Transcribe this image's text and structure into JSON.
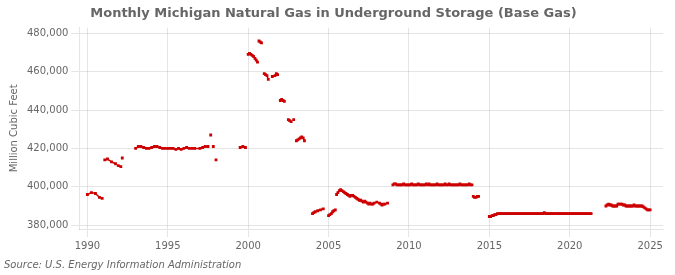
{
  "chart_data": {
    "type": "line",
    "title": "Monthly Michigan Natural Gas in Underground Storage (Base Gas)",
    "ylabel": "Million Cubic Feet",
    "source": "Source: U.S. Energy Information Administration",
    "grid": true,
    "xlim": [
      1989.5,
      2025.8
    ],
    "xticks": [
      1990,
      1995,
      2000,
      2005,
      2010,
      2015,
      2020,
      2025
    ],
    "ylim": [
      378000,
      483000
    ],
    "yticks": [
      {
        "value": 380000,
        "label": "380,000"
      },
      {
        "value": 400000,
        "label": "400,000"
      },
      {
        "value": 420000,
        "label": "420,000"
      },
      {
        "value": 440000,
        "label": "440,000"
      },
      {
        "value": 460000,
        "label": "460,000"
      },
      {
        "value": 480000,
        "label": "480,000"
      }
    ],
    "x": [
      1990.0,
      1990.25,
      1990.5,
      1990.75,
      1990.92,
      null,
      1991.08,
      1991.25,
      1991.5,
      1991.75,
      null,
      1991.92,
      1992.08,
      null,
      1992.17,
      null,
      1993.0,
      1993.17,
      1993.33,
      1993.5,
      1993.67,
      1993.83,
      1994.0,
      1994.17,
      1994.33,
      1994.5,
      1994.67,
      1994.83,
      1995.0,
      1995.17,
      1995.33,
      1995.5,
      1995.67,
      1995.83,
      1996.0,
      1996.17,
      1996.33,
      1996.5,
      1996.67,
      1997.0,
      1997.17,
      1997.33,
      1997.5,
      null,
      1997.67,
      null,
      1997.83,
      null,
      1998.0,
      null,
      1999.5,
      1999.67,
      1999.83,
      null,
      2000.0,
      2000.08,
      2000.17,
      2000.25,
      2000.33,
      2000.42,
      2000.5,
      2000.58,
      null,
      2000.67,
      2000.75,
      2000.83,
      null,
      2001.0,
      2001.08,
      2001.17,
      2001.25,
      null,
      2001.5,
      2001.67,
      2001.75,
      2001.83,
      null,
      2002.0,
      2002.08,
      2002.17,
      2002.25,
      null,
      2002.5,
      2002.58,
      2002.67,
      null,
      2002.83,
      null,
      2003.0,
      2003.08,
      2003.17,
      2003.25,
      2003.33,
      2003.42,
      2003.5,
      null,
      2004.0,
      2004.08,
      2004.17,
      2004.33,
      2004.5,
      2004.67,
      null,
      2005.0,
      2005.08,
      2005.17,
      2005.25,
      2005.33,
      2005.42,
      null,
      2005.5,
      2005.58,
      2005.67,
      2005.75,
      2005.83,
      2005.92,
      2006.0,
      2006.08,
      2006.17,
      2006.25,
      2006.33,
      2006.42,
      2006.5,
      2006.58,
      2006.67,
      2006.75,
      2006.83,
      2006.92,
      2007.0,
      2007.08,
      2007.17,
      2007.25,
      2007.33,
      2007.42,
      2007.5,
      2007.58,
      2007.67,
      2007.75,
      2007.83,
      2008.0,
      2008.17,
      2008.25,
      2008.33,
      2008.42,
      2008.5,
      2008.67,
      null,
      2009.0,
      2009.08,
      2009.17,
      2009.25,
      2009.33,
      2009.42,
      2009.5,
      2009.58,
      2009.67,
      2009.75,
      2009.83,
      2009.92,
      2010.0,
      2010.08,
      2010.17,
      2010.25,
      2010.33,
      2010.42,
      2010.5,
      2010.58,
      2010.67,
      2010.75,
      2010.83,
      2010.92,
      2011.0,
      2011.08,
      2011.17,
      2011.25,
      2011.33,
      2011.42,
      2011.5,
      2011.58,
      2011.67,
      2011.75,
      2011.83,
      2011.92,
      2012.0,
      2012.08,
      2012.17,
      2012.25,
      2012.33,
      2012.42,
      2012.5,
      2012.58,
      2012.67,
      2012.75,
      2012.83,
      2012.92,
      2013.0,
      2013.08,
      2013.17,
      2013.25,
      2013.33,
      2013.42,
      2013.5,
      2013.58,
      2013.67,
      2013.75,
      2013.83,
      2013.92,
      null,
      2014.0,
      2014.08,
      2014.17,
      2014.25,
      2014.33,
      null,
      2015.0,
      2015.08,
      2015.17,
      2015.25,
      2015.33,
      2015.42,
      2015.5,
      2015.58,
      2015.67,
      2015.75,
      2015.83,
      2015.92,
      2016.0,
      2016.08,
      2016.17,
      2016.25,
      2016.33,
      2016.42,
      2016.5,
      2016.58,
      2016.67,
      2016.75,
      2016.83,
      2016.92,
      2017.0,
      2017.08,
      2017.17,
      2017.25,
      2017.33,
      2017.42,
      2017.5,
      2017.58,
      2017.67,
      2017.75,
      2017.83,
      2017.92,
      2018.0,
      2018.08,
      2018.17,
      2018.25,
      2018.33,
      2018.42,
      2018.5,
      2018.58,
      2018.67,
      2018.75,
      2018.83,
      2018.92,
      2019.0,
      2019.08,
      2019.17,
      2019.25,
      2019.33,
      2019.42,
      2019.5,
      2019.58,
      2019.67,
      2019.75,
      2019.83,
      2019.92,
      2020.0,
      2020.08,
      2020.17,
      2020.25,
      2020.33,
      2020.42,
      2020.5,
      2020.58,
      2020.67,
      2020.75,
      2020.83,
      2020.92,
      2021.0,
      2021.08,
      2021.17,
      2021.25,
      2021.33,
      null,
      2022.25,
      2022.33,
      2022.42,
      2022.5,
      2022.58,
      2022.67,
      2022.75,
      2022.83,
      2022.92,
      2023.0,
      2023.08,
      2023.17,
      2023.25,
      2023.33,
      2023.42,
      2023.5,
      2023.58,
      2023.67,
      2023.75,
      2023.83,
      2023.92,
      2024.0,
      2024.08,
      2024.17,
      2024.25,
      2024.33,
      2024.42,
      2024.5,
      2024.58,
      2024.67,
      2024.75,
      2024.83,
      2024.92,
      2025.0
    ],
    "series": [
      {
        "name": "Base Gas",
        "color": "#cc0000",
        "marker": "square",
        "values": [
          396000,
          397000,
          396500,
          394500,
          394000,
          null,
          414000,
          414500,
          413000,
          412000,
          null,
          411000,
          410500,
          null,
          415000,
          null,
          420000,
          421000,
          421000,
          420500,
          420000,
          420000,
          420500,
          421000,
          421000,
          420500,
          420000,
          420000,
          420000,
          420000,
          420000,
          419500,
          420000,
          419500,
          420000,
          420500,
          420000,
          420000,
          420000,
          420000,
          420500,
          421000,
          421000,
          null,
          427000,
          null,
          421000,
          null,
          414000,
          null,
          420500,
          421000,
          420500,
          null,
          469000,
          469500,
          469000,
          468500,
          468000,
          467000,
          466000,
          465000,
          null,
          476000,
          475500,
          475000,
          null,
          459000,
          458500,
          458000,
          456000,
          null,
          457500,
          458000,
          459000,
          458500,
          null,
          445000,
          445500,
          445000,
          444500,
          null,
          435000,
          434500,
          434000,
          null,
          435000,
          null,
          424000,
          424500,
          425000,
          425500,
          426000,
          425500,
          424000,
          null,
          386000,
          386500,
          387000,
          387500,
          388000,
          388500,
          null,
          385000,
          385500,
          386000,
          387000,
          387500,
          388000,
          null,
          396000,
          397000,
          398000,
          398500,
          398000,
          397500,
          397000,
          396500,
          396000,
          395500,
          395000,
          395500,
          395500,
          395000,
          394500,
          394000,
          393500,
          393000,
          393000,
          392500,
          392000,
          392500,
          392000,
          391500,
          391000,
          391500,
          391000,
          391000,
          391500,
          392000,
          391500,
          391000,
          390500,
          391000,
          391000,
          391500,
          null,
          401000,
          401500,
          401500,
          401000,
          401000,
          401000,
          401000,
          401000,
          401500,
          401000,
          401000,
          401000,
          401000,
          401000,
          401500,
          401000,
          401000,
          401000,
          401000,
          401500,
          401000,
          401000,
          401000,
          401000,
          401000,
          401500,
          401000,
          401500,
          401000,
          401000,
          401000,
          401000,
          401000,
          401500,
          401000,
          401000,
          401000,
          401000,
          401000,
          401500,
          401000,
          401000,
          401500,
          401000,
          401000,
          401000,
          401000,
          401000,
          401000,
          401000,
          401500,
          401000,
          401000,
          401000,
          401000,
          401000,
          401000,
          401500,
          401000,
          401000,
          null,
          395000,
          394500,
          394500,
          395000,
          395000,
          null,
          384500,
          384500,
          385000,
          385000,
          385500,
          385500,
          386000,
          386000,
          386000,
          386000,
          386000,
          386000,
          386000,
          386000,
          386000,
          386000,
          386000,
          386000,
          386000,
          386000,
          386000,
          386000,
          386000,
          386000,
          386000,
          386000,
          386000,
          386000,
          386000,
          386000,
          386000,
          386000,
          386000,
          386000,
          386000,
          386000,
          386000,
          386000,
          386000,
          386000,
          386000,
          386500,
          386000,
          386000,
          386000,
          386000,
          386000,
          386000,
          386000,
          386000,
          386000,
          386000,
          386000,
          386000,
          386000,
          386000,
          386000,
          386000,
          386000,
          386000,
          386000,
          386000,
          386000,
          386000,
          386000,
          386000,
          386000,
          386000,
          386000,
          386000,
          386000,
          386000,
          386000,
          386000,
          386000,
          386000,
          386000,
          null,
          390000,
          390500,
          391000,
          390500,
          390500,
          390000,
          390000,
          390000,
          390000,
          391000,
          391000,
          391000,
          391000,
          390500,
          390500,
          390000,
          390000,
          390000,
          390000,
          390000,
          390000,
          390500,
          390000,
          390000,
          390000,
          390000,
          390000,
          390000,
          389500,
          389000,
          388500,
          388000,
          388000,
          388000
        ]
      }
    ]
  }
}
